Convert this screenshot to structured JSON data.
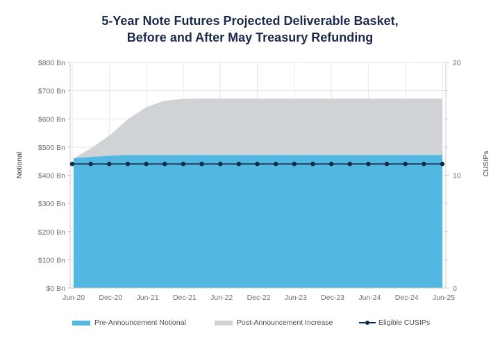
{
  "chart_data": {
    "type": "area",
    "title_line1": "5-Year Note Futures Projected Deliverable Basket,",
    "title_line2": "Before and After May Treasury Refunding",
    "x": [
      "Jun-20",
      "Sep-20",
      "Dec-20",
      "Mar-21",
      "Jun-21",
      "Sep-21",
      "Dec-21",
      "Mar-22",
      "Jun-22",
      "Sep-22",
      "Dec-22",
      "Mar-23",
      "Jun-23",
      "Sep-23",
      "Dec-23",
      "Mar-24",
      "Jun-24",
      "Sep-24",
      "Dec-24",
      "Mar-25",
      "Jun-25"
    ],
    "x_tick_labels": [
      "Jun-20",
      "Dec-20",
      "Jun-21",
      "Dec-21",
      "Jun-22",
      "Dec-22",
      "Jun-23",
      "Dec-23",
      "Jun-24",
      "Dec-24",
      "Jun-25"
    ],
    "series": [
      {
        "name": "Pre-Announcement Notional",
        "axis": "left",
        "kind": "area",
        "color": "#52b8e2",
        "values": [
          460,
          465,
          469,
          472,
          472,
          472,
          472,
          472,
          472,
          472,
          472,
          472,
          472,
          472,
          472,
          472,
          472,
          472,
          472,
          472,
          472
        ]
      },
      {
        "name": "Post-Announcement Increase",
        "axis": "left",
        "kind": "stacked-area",
        "color": "#cfd3d6",
        "values": [
          0,
          30,
          71,
          126,
          170,
          192,
          199,
          200,
          200,
          200,
          200,
          200,
          200,
          200,
          200,
          200,
          200,
          200,
          200,
          200,
          200
        ]
      },
      {
        "name": "Eligible CUSIPs",
        "axis": "right",
        "kind": "line-markers",
        "color": "#0f2a48",
        "values": [
          11,
          11,
          11,
          11,
          11,
          11,
          11,
          11,
          11,
          11,
          11,
          11,
          11,
          11,
          11,
          11,
          11,
          11,
          11,
          11,
          11
        ]
      }
    ],
    "ylabel_left": "Notional",
    "ylabel_right": "CUSIPs",
    "ylim_left": [
      0,
      800
    ],
    "ylim_right": [
      0,
      20
    ],
    "y_left_ticks": [
      0,
      100,
      200,
      300,
      400,
      500,
      600,
      700,
      800
    ],
    "y_left_tick_labels": [
      "$0 Bn",
      "$100 Bn",
      "$200 Bn",
      "$300 Bn",
      "$400 Bn",
      "$500 Bn",
      "$600 Bn",
      "$700 Bn",
      "$800 Bn"
    ],
    "y_right_ticks": [
      0,
      10,
      20
    ],
    "y_right_tick_labels": [
      "0",
      "10",
      "20"
    ],
    "grid": true,
    "legend_position": "bottom",
    "colors": {
      "grid": "#e6e7e9",
      "axis": "#c9cbce",
      "title": "#1c2b4b"
    }
  },
  "legend": [
    {
      "label": "Pre-Announcement Notional"
    },
    {
      "label": "Post-Announcement Increase"
    },
    {
      "label": "Eligible CUSIPs"
    }
  ]
}
